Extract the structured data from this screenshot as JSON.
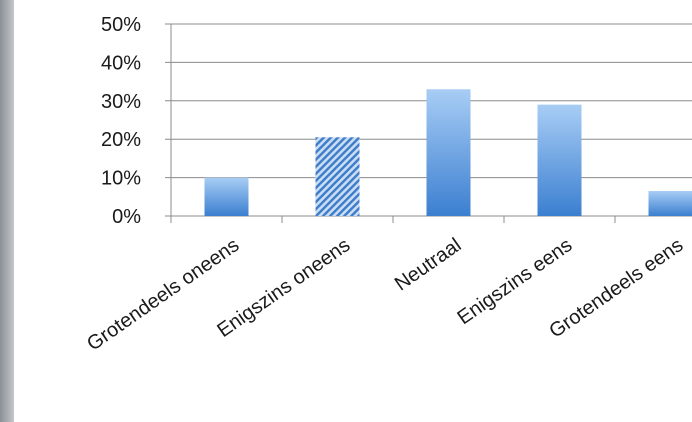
{
  "chart_data": {
    "type": "bar",
    "title": "",
    "xlabel": "",
    "ylabel": "",
    "ylim": [
      0,
      50
    ],
    "y_ticks": [
      "0%",
      "10%",
      "20%",
      "30%",
      "40%",
      "50%"
    ],
    "grid": true,
    "legend": "none",
    "categories": [
      "Grotendeels oneens",
      "Enigszins oneens",
      "Neutraal",
      "Enigszins eens",
      "Grotendeels eens"
    ],
    "values": [
      10,
      20.5,
      33,
      29,
      6.5
    ],
    "highlighted_category": "Enigszins oneens",
    "colors": {
      "bar_top": "#a8cdf5",
      "bar_bottom": "#3b7fd0",
      "hatch_fill": "#3d7cc9",
      "hatch_bg": "#c9ddf4",
      "grid": "#8c8c8c",
      "left_strip": "#9aa0a6"
    }
  }
}
